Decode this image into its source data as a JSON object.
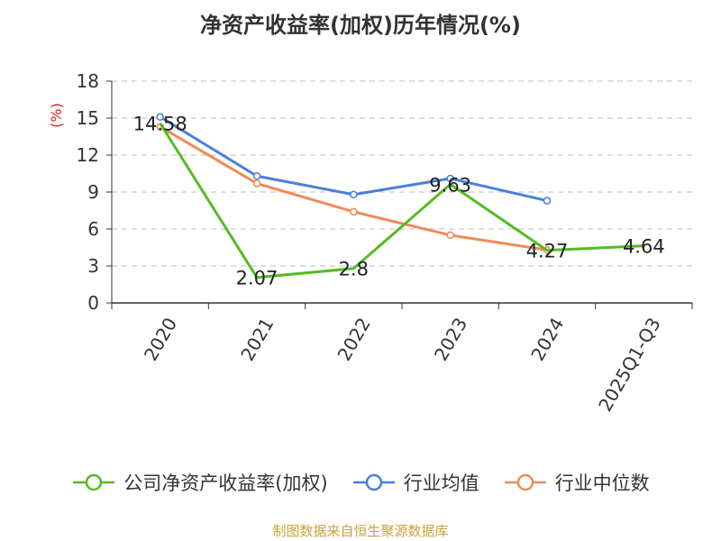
{
  "chart_data": {
    "type": "line",
    "title": "净资产收益率(加权)历年情况(%)",
    "ylabel": "(%)",
    "categories": [
      "2020",
      "2021",
      "2022",
      "2023",
      "2024",
      "2025Q1-Q3"
    ],
    "ylim": [
      0,
      18
    ],
    "yticks": [
      0,
      3,
      6,
      9,
      12,
      15,
      18
    ],
    "grid": true,
    "legend_position": "bottom",
    "series": [
      {
        "name": "公司净资产收益率(加权)",
        "color": "#55bb22",
        "values": [
          14.58,
          2.07,
          2.8,
          9.63,
          4.27,
          4.64
        ],
        "labels": [
          "14.58",
          "2.07",
          "2.8",
          "9.63",
          "4.27",
          "4.64"
        ]
      },
      {
        "name": "行业均值",
        "color": "#4a7fdc",
        "values": [
          15.1,
          10.3,
          8.8,
          10.1,
          8.3,
          null
        ]
      },
      {
        "name": "行业中位数",
        "color": "#f08a5a",
        "values": [
          14.3,
          9.7,
          7.4,
          5.5,
          4.3,
          null
        ]
      }
    ]
  },
  "footer": {
    "source": "制图数据来自恒生聚源数据库"
  }
}
